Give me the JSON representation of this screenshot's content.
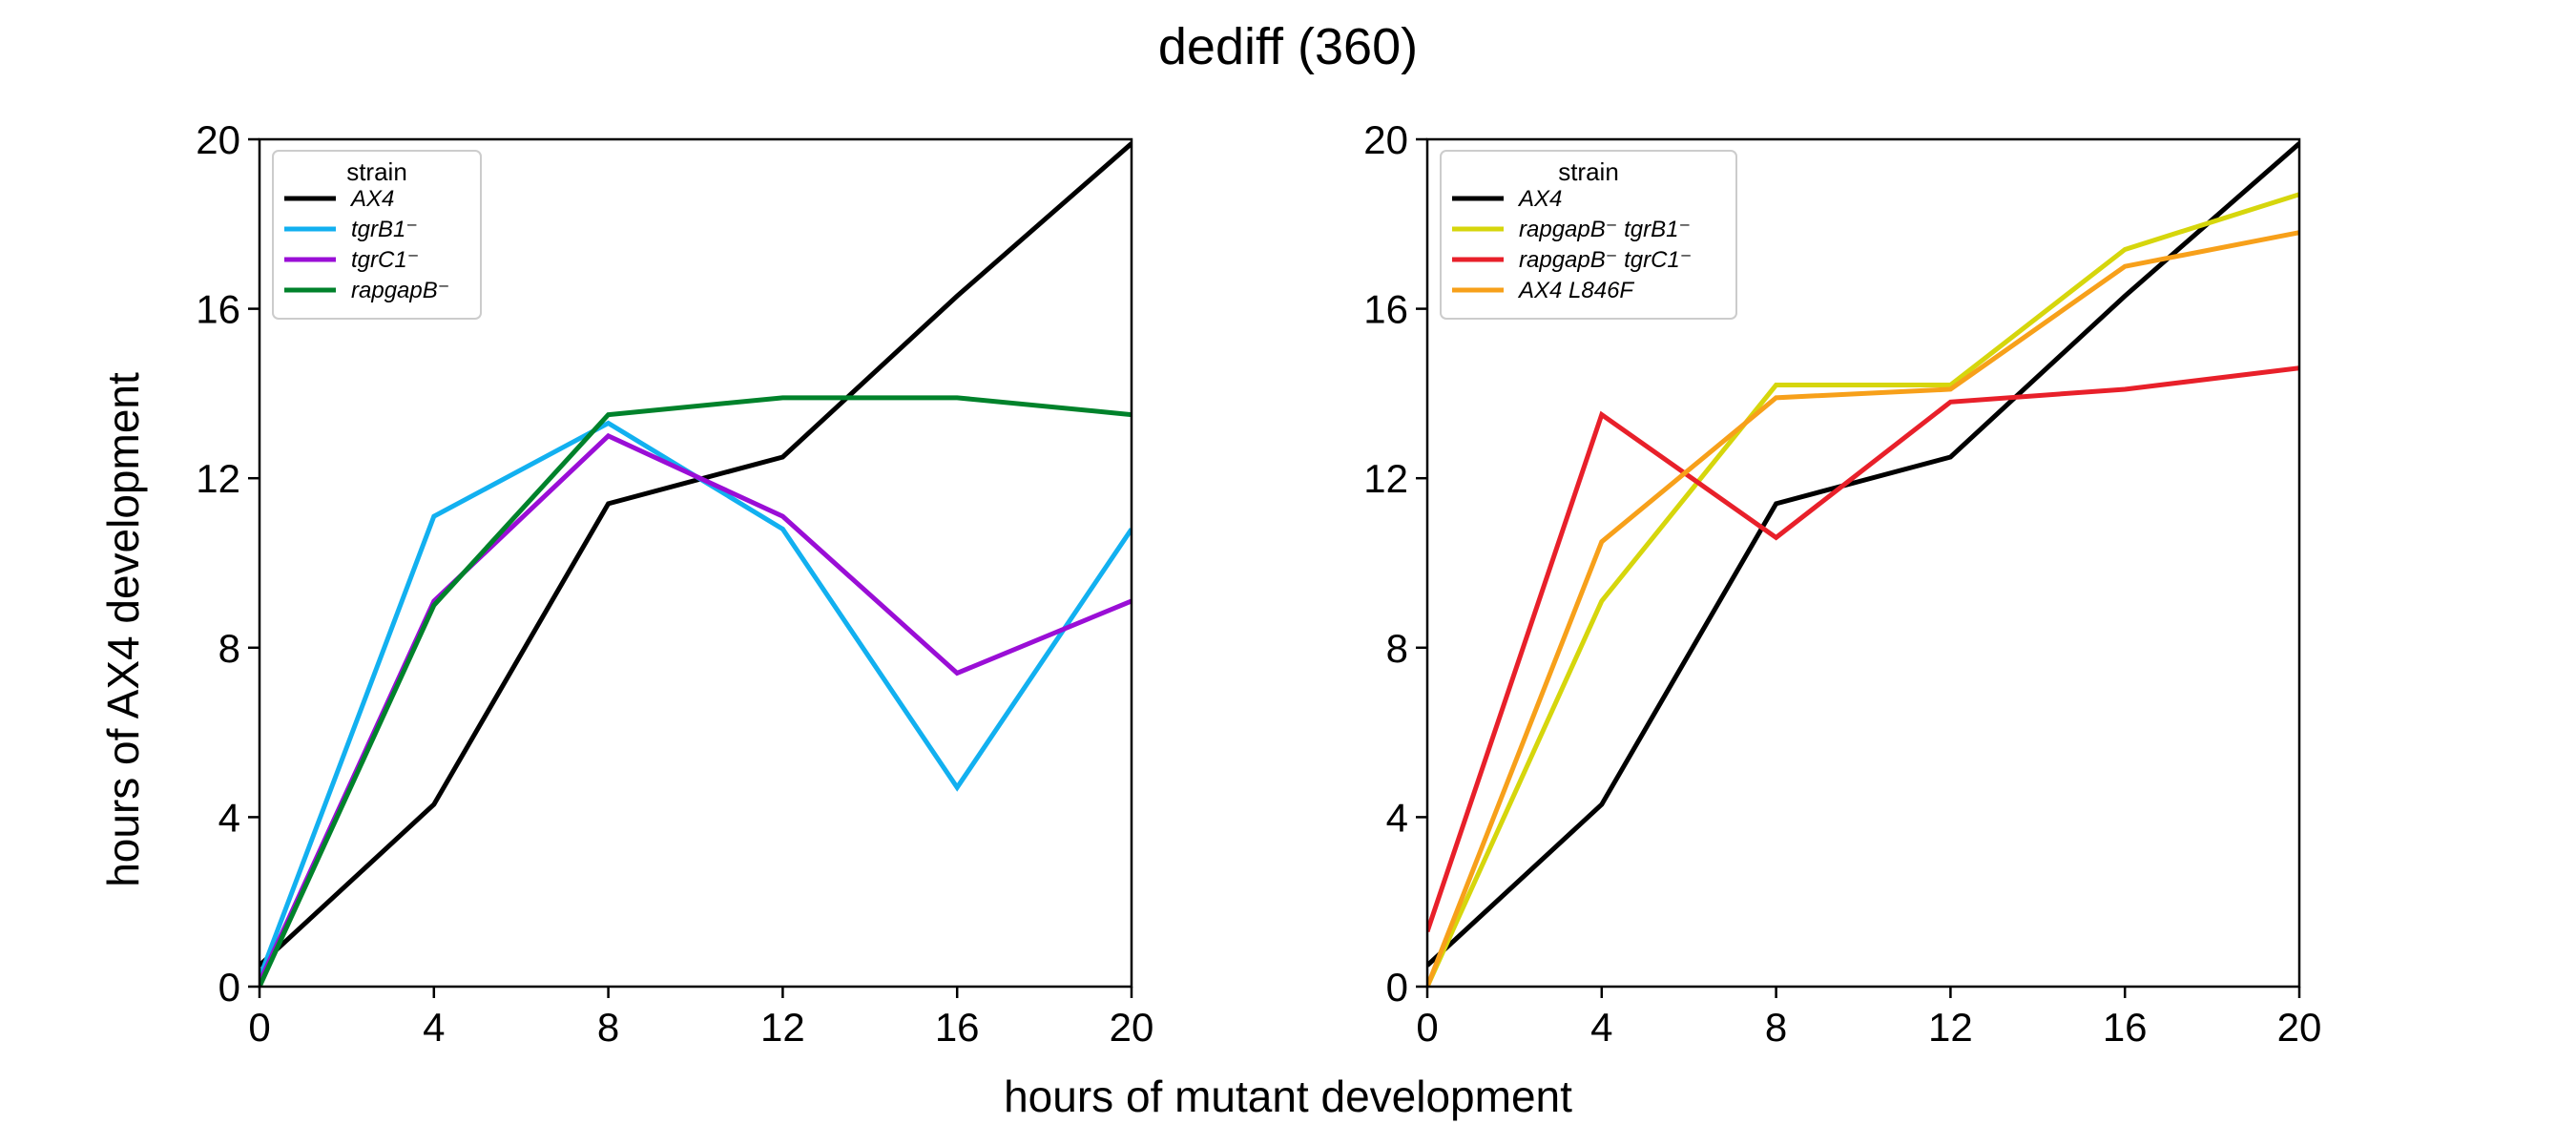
{
  "title": "dediff (360)",
  "xlabel": "hours of mutant development",
  "ylabel": "hours of AX4 development",
  "chart_data": [
    {
      "type": "line",
      "xlim": [
        0,
        20
      ],
      "ylim": [
        0,
        20
      ],
      "xticks": [
        0,
        4,
        8,
        12,
        16,
        20
      ],
      "yticks": [
        0,
        4,
        8,
        12,
        16,
        20
      ],
      "grid": false,
      "legend_title": "strain",
      "legend_position": "top-left",
      "x": [
        0,
        4,
        8,
        12,
        16,
        20
      ],
      "series": [
        {
          "name": "AX4",
          "color": "#000000",
          "values": [
            0.5,
            4.3,
            11.4,
            12.5,
            16.3,
            19.9
          ]
        },
        {
          "name": "tgrB1⁻",
          "color": "#12b0f0",
          "values": [
            0.2,
            11.1,
            13.3,
            10.8,
            4.7,
            10.8
          ]
        },
        {
          "name": "tgrC1⁻",
          "color": "#9a0ed6",
          "values": [
            0.1,
            9.1,
            13.0,
            11.1,
            7.4,
            9.1
          ]
        },
        {
          "name": "rapgapB⁻",
          "color": "#00822b",
          "values": [
            0.0,
            9.0,
            13.5,
            13.9,
            13.9,
            13.5
          ]
        }
      ]
    },
    {
      "type": "line",
      "xlim": [
        0,
        20
      ],
      "ylim": [
        0,
        20
      ],
      "xticks": [
        0,
        4,
        8,
        12,
        16,
        20
      ],
      "yticks": [
        0,
        4,
        8,
        12,
        16,
        20
      ],
      "grid": false,
      "legend_title": "strain",
      "legend_position": "top-left",
      "x": [
        0,
        4,
        8,
        12,
        16,
        20
      ],
      "series": [
        {
          "name": "AX4",
          "color": "#000000",
          "values": [
            0.5,
            4.3,
            11.4,
            12.5,
            16.3,
            19.9
          ]
        },
        {
          "name": "rapgapB⁻ tgrB1⁻",
          "color": "#d6d60c",
          "values": [
            0.0,
            9.1,
            14.2,
            14.2,
            17.4,
            18.7
          ]
        },
        {
          "name": "rapgapB⁻ tgrC1⁻",
          "color": "#e8202a",
          "values": [
            1.3,
            13.5,
            10.6,
            13.8,
            14.1,
            14.6
          ]
        },
        {
          "name": "AX4 L846F",
          "color": "#f7a01a",
          "values": [
            0.0,
            10.5,
            13.9,
            14.1,
            17.0,
            17.8
          ]
        }
      ]
    }
  ]
}
